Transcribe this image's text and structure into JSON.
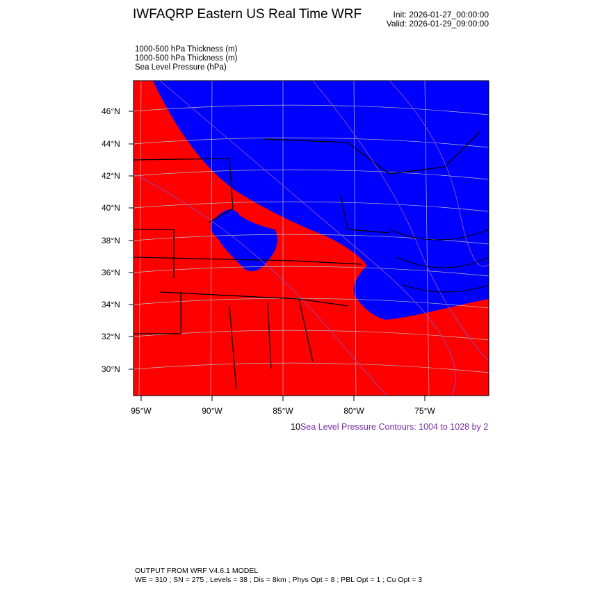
{
  "header": {
    "title": "IWFAQRP Eastern US Real Time WRF",
    "init": "Init: 2026-01-27_00:00:00",
    "valid": "Valid: 2026-01-29_09:00:00"
  },
  "fields": [
    "1000-500 hPa Thickness   (m)",
    "1000-500 hPa Thickness   (m)",
    "Sea Level Pressure   (hPa)"
  ],
  "map": {
    "lat_labels": [
      "46°N",
      "44°N",
      "42°N",
      "40°N",
      "38°N",
      "36°N",
      "34°N",
      "32°N",
      "30°N"
    ],
    "lon_labels": [
      "95°W",
      "90°W",
      "85°W",
      "80°W",
      "75°W"
    ],
    "colors": {
      "warm": "#ff0000",
      "cold": "#0000ff",
      "slp_contour": "#8a4fc0",
      "boundaries": "#000000"
    }
  },
  "contour_info": {
    "prefix": "10",
    "label": "Sea Level Pressure Contours: 1004 to 1028 by 2"
  },
  "footer": {
    "line1": "OUTPUT FROM WRF V4.6.1 MODEL",
    "line2": "WE = 310 ; SN = 275 ; Levels = 38 ; Dis = 8km ; Phys Opt = 8 ; PBL Opt = 1 ; Cu Opt = 3"
  }
}
